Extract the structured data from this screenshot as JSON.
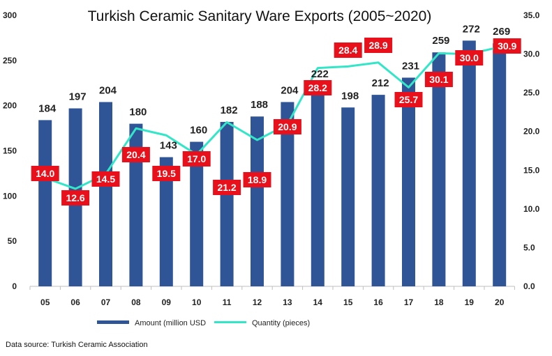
{
  "chart_data": {
    "type": "bar",
    "title": "Turkish Ceramic Sanitary Ware Exports (2005~2020)",
    "categories": [
      "05",
      "06",
      "07",
      "08",
      "09",
      "10",
      "11",
      "12",
      "13",
      "14",
      "15",
      "16",
      "17",
      "18",
      "19",
      "20"
    ],
    "series": [
      {
        "name": "Amount (million USD",
        "type": "bar",
        "axis": "left",
        "color": "#2F5597",
        "values": [
          184,
          197,
          204,
          180,
          143,
          160,
          182,
          188,
          204,
          222,
          198,
          212,
          231,
          259,
          272,
          269
        ]
      },
      {
        "name": "Quantity (pieces)",
        "type": "line",
        "axis": "right",
        "color": "#33E6C8",
        "values": [
          14.0,
          12.6,
          14.5,
          20.4,
          19.5,
          17.0,
          21.2,
          18.9,
          20.9,
          28.2,
          28.4,
          28.9,
          25.7,
          30.1,
          30.0,
          30.9
        ]
      }
    ],
    "y_left": {
      "min": 0,
      "max": 300,
      "ticks": [
        "0",
        "50",
        "100",
        "150",
        "200",
        "250",
        "300"
      ]
    },
    "y_right": {
      "min": 0,
      "max": 35,
      "ticks": [
        "0.0",
        "5.0",
        "10.0",
        "15.0",
        "20.0",
        "25.0",
        "30.0",
        "35.0"
      ]
    },
    "grid": false,
    "legend_position": "bottom",
    "label_color": "#E8101A"
  },
  "source": "Data source: Turkish Ceramic Association"
}
